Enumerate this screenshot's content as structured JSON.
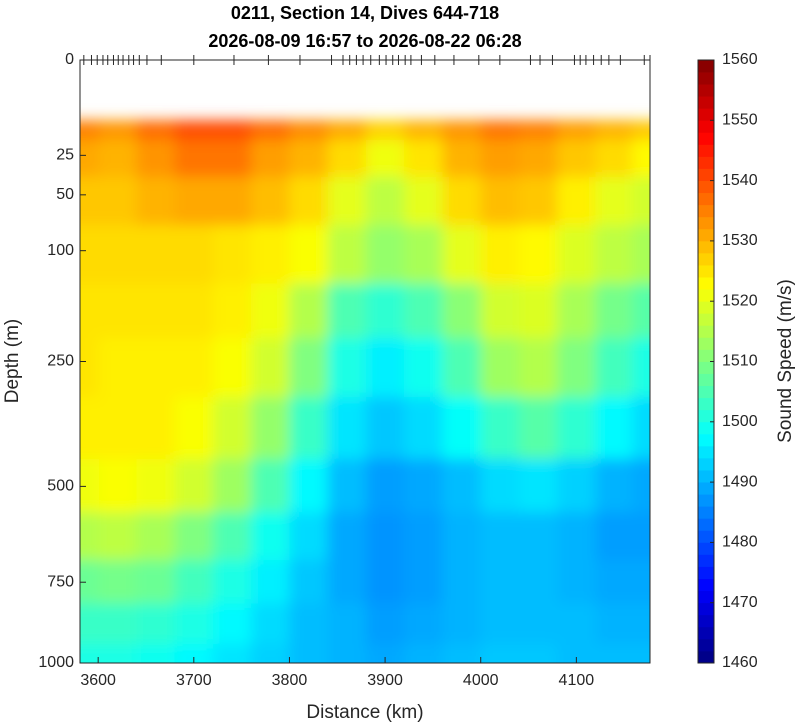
{
  "chart_data": {
    "type": "contour",
    "title": "0211, Section 14, Dives 644-718",
    "subtitle": "2026-08-09 16:57 to 2026-08-22 06:28",
    "xlabel": "Distance (km)",
    "ylabel": "Depth (m)",
    "xlim": [
      3581,
      4177
    ],
    "xticks": [
      3600,
      3700,
      3800,
      3900,
      4000,
      4100
    ],
    "ylim": [
      0,
      1000
    ],
    "yscale": "sqrt",
    "y_direction": "reverse",
    "yticks": [
      0,
      25,
      50,
      100,
      250,
      500,
      750,
      1000
    ],
    "x": [
      3581,
      3620,
      3660,
      3700,
      3740,
      3780,
      3820,
      3860,
      3900,
      3940,
      3980,
      4020,
      4060,
      4100,
      4140,
      4177
    ],
    "y": [
      10,
      25,
      50,
      100,
      175,
      250,
      375,
      500,
      625,
      750,
      875,
      1000
    ],
    "z": [
      [
        1535,
        1533,
        1537,
        1540,
        1540,
        1537,
        1534,
        1531,
        1527,
        1530,
        1533,
        1536,
        1535,
        1532,
        1530,
        1528
      ],
      [
        1531,
        1530,
        1533,
        1536,
        1536,
        1532,
        1530,
        1526,
        1521,
        1525,
        1530,
        1532,
        1531,
        1528,
        1526,
        1523
      ],
      [
        1528,
        1528,
        1530,
        1531,
        1531,
        1529,
        1526,
        1520,
        1516,
        1520,
        1526,
        1529,
        1528,
        1524,
        1520,
        1518
      ],
      [
        1526,
        1526,
        1526,
        1526,
        1525,
        1524,
        1522,
        1516,
        1512,
        1514,
        1520,
        1524,
        1523,
        1519,
        1516,
        1514
      ],
      [
        1525,
        1525,
        1525,
        1525,
        1524,
        1521,
        1515,
        1505,
        1502,
        1505,
        1511,
        1518,
        1519,
        1514,
        1509,
        1506
      ],
      [
        1525,
        1524,
        1524,
        1524,
        1522,
        1518,
        1510,
        1500,
        1496,
        1499,
        1505,
        1513,
        1515,
        1510,
        1504,
        1500
      ],
      [
        1524,
        1524,
        1524,
        1522,
        1518,
        1512,
        1503,
        1495,
        1492,
        1494,
        1498,
        1503,
        1506,
        1502,
        1497,
        1494
      ],
      [
        1521,
        1522,
        1521,
        1518,
        1513,
        1505,
        1497,
        1491,
        1488,
        1489,
        1491,
        1494,
        1495,
        1493,
        1490,
        1489
      ],
      [
        1515,
        1516,
        1514,
        1510,
        1505,
        1499,
        1494,
        1489,
        1487,
        1488,
        1490,
        1491,
        1491,
        1490,
        1488,
        1488
      ],
      [
        1508,
        1509,
        1508,
        1504,
        1500,
        1496,
        1492,
        1489,
        1487,
        1488,
        1490,
        1491,
        1491,
        1490,
        1489,
        1489
      ],
      [
        1503,
        1503,
        1502,
        1500,
        1497,
        1494,
        1491,
        1490,
        1488,
        1489,
        1490,
        1491,
        1491,
        1491,
        1490,
        1490
      ],
      [
        1500,
        1500,
        1499,
        1497,
        1495,
        1493,
        1491,
        1490,
        1489,
        1490,
        1491,
        1492,
        1492,
        1491,
        1491,
        1491
      ]
    ],
    "dive_x": [
      3585,
      3593,
      3599,
      3605,
      3610,
      3616,
      3621,
      3626,
      3632,
      3637,
      3643,
      3651,
      3666,
      3700,
      3742,
      3778,
      3811,
      3844,
      3856,
      3863,
      3870,
      3877,
      3885,
      3894,
      3901,
      3908,
      3914,
      3921,
      3927,
      3938,
      3952,
      3972,
      3998,
      4020,
      4052,
      4062,
      4075,
      4098,
      4104,
      4110,
      4118,
      4126,
      4134,
      4146,
      4171,
      4177
    ],
    "colorbar": {
      "label": "Sound Speed (m/s)",
      "colormap": "jet",
      "clim": [
        1460,
        1560
      ],
      "ticks": [
        1460,
        1470,
        1480,
        1490,
        1500,
        1510,
        1520,
        1530,
        1540,
        1550,
        1560
      ]
    }
  }
}
